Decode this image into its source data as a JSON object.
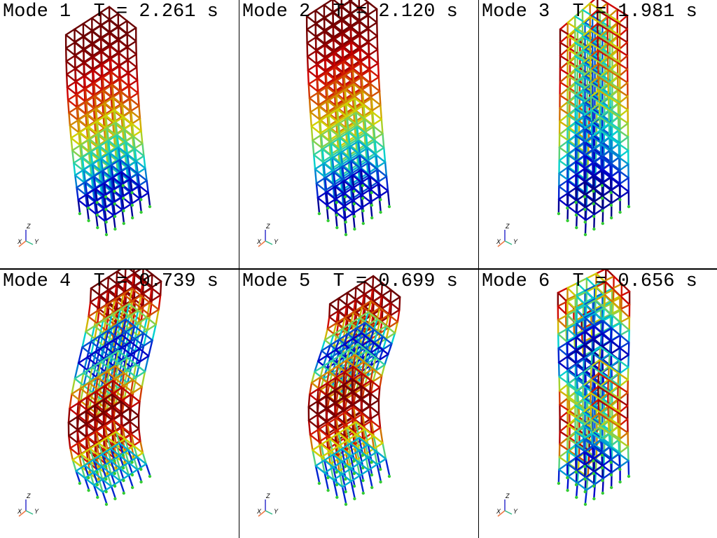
{
  "panels": [
    {
      "title": "Mode 1  T = 2.261 s"
    },
    {
      "title": "Mode 2  T = 2.120 s"
    },
    {
      "title": "Mode 3  T = 1.981 s"
    },
    {
      "title": "Mode 4  T = 0.739 s"
    },
    {
      "title": "Mode 5  T = 0.699 s"
    },
    {
      "title": "Mode 6  T = 0.656 s"
    }
  ],
  "axes_labels": {
    "x": "X",
    "y": "Y",
    "z": "Z"
  }
}
